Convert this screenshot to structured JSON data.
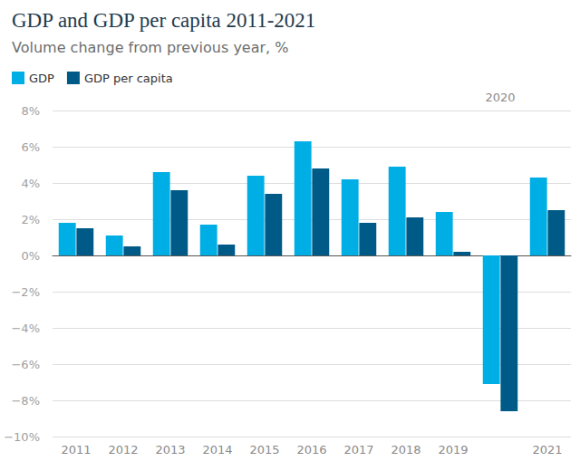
{
  "chart_data": {
    "type": "bar",
    "title": "GDP and GDP per capita 2011-2021",
    "subtitle": "Volume change from previous year, %",
    "categories": [
      "2011",
      "2012",
      "2013",
      "2014",
      "2015",
      "2016",
      "2017",
      "2018",
      "2019",
      "2020",
      "2021"
    ],
    "series": [
      {
        "name": "GDP",
        "color": "#00aee6",
        "values": [
          1.8,
          1.1,
          4.6,
          1.7,
          4.4,
          6.3,
          4.2,
          4.9,
          2.4,
          -7.1,
          4.3
        ]
      },
      {
        "name": "GDP per capita",
        "color": "#005a87",
        "values": [
          1.5,
          0.5,
          3.6,
          0.6,
          3.4,
          4.8,
          1.8,
          2.1,
          0.2,
          -8.6,
          2.5
        ]
      }
    ],
    "ylim": [
      -10,
      8
    ],
    "yticks": [
      {
        "value": -10,
        "label": "−10%"
      },
      {
        "value": -8,
        "label": "−8%"
      },
      {
        "value": -6,
        "label": "−6%"
      },
      {
        "value": -4,
        "label": "−4%"
      },
      {
        "value": -2,
        "label": "−2%"
      },
      {
        "value": 0,
        "label": "0%"
      },
      {
        "value": 2,
        "label": "2%"
      },
      {
        "value": 4,
        "label": "4%"
      },
      {
        "value": 6,
        "label": "6%"
      },
      {
        "value": 8,
        "label": "8%"
      }
    ],
    "grid": true,
    "legend": "top-left"
  }
}
